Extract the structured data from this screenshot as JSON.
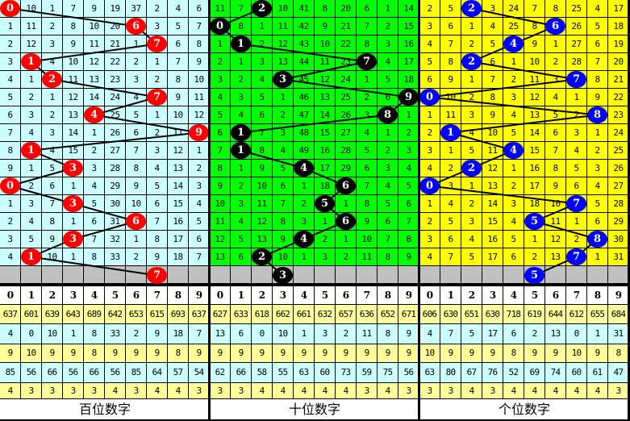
{
  "colors": {
    "grid": "#000000",
    "pending_row": "#c0c0c0",
    "stat_yellow": "#ffff99",
    "stat_cyan": "#ccffff",
    "ball_text": "#ffffff"
  },
  "sections": [
    {
      "label": "百位数字",
      "background": "#ccffff",
      "ball_color": "#ff0000",
      "rows": [
        {
          "cells": [
            "0",
            "10",
            "1",
            "7",
            "9",
            "19",
            "37",
            "2",
            "4",
            "6"
          ],
          "hit": 0
        },
        {
          "cells": [
            "1",
            "11",
            "2",
            "8",
            "10",
            "20",
            "6",
            "3",
            "5",
            "7"
          ],
          "hit": 6
        },
        {
          "cells": [
            "2",
            "12",
            "3",
            "9",
            "11",
            "21",
            "1",
            "7",
            "6",
            "8"
          ],
          "hit": 7
        },
        {
          "cells": [
            "3",
            "1",
            "4",
            "10",
            "12",
            "22",
            "2",
            "1",
            "7",
            "9"
          ],
          "hit": 1
        },
        {
          "cells": [
            "4",
            "1",
            "2",
            "11",
            "13",
            "23",
            "3",
            "2",
            "8",
            "10"
          ],
          "hit": 2
        },
        {
          "cells": [
            "5",
            "2",
            "1",
            "12",
            "14",
            "24",
            "4",
            "7",
            "9",
            "11"
          ],
          "hit": 7
        },
        {
          "cells": [
            "6",
            "3",
            "2",
            "13",
            "4",
            "25",
            "5",
            "1",
            "10",
            "12"
          ],
          "hit": 4
        },
        {
          "cells": [
            "7",
            "4",
            "3",
            "14",
            "1",
            "26",
            "6",
            "2",
            "11",
            "9"
          ],
          "hit": 9
        },
        {
          "cells": [
            "8",
            "1",
            "4",
            "15",
            "2",
            "27",
            "7",
            "3",
            "12",
            "1"
          ],
          "hit": 1
        },
        {
          "cells": [
            "9",
            "1",
            "5",
            "3",
            "3",
            "28",
            "8",
            "4",
            "13",
            "2"
          ],
          "hit": 3
        },
        {
          "cells": [
            "0",
            "2",
            "6",
            "1",
            "4",
            "29",
            "9",
            "5",
            "14",
            "3"
          ],
          "hit": 0
        },
        {
          "cells": [
            "1",
            "3",
            "7",
            "3",
            "5",
            "30",
            "10",
            "6",
            "15",
            "4"
          ],
          "hit": 3
        },
        {
          "cells": [
            "2",
            "4",
            "8",
            "1",
            "6",
            "31",
            "6",
            "7",
            "16",
            "5"
          ],
          "hit": 6
        },
        {
          "cells": [
            "3",
            "5",
            "9",
            "3",
            "7",
            "32",
            "1",
            "8",
            "17",
            "6"
          ],
          "hit": 3
        },
        {
          "cells": [
            "4",
            "1",
            "10",
            "1",
            "8",
            "33",
            "2",
            "9",
            "18",
            "7"
          ],
          "hit": 1
        }
      ],
      "next": {
        "digit": "7",
        "col": 7
      },
      "header": [
        "0",
        "1",
        "2",
        "3",
        "4",
        "5",
        "6",
        "7",
        "8",
        "9"
      ],
      "stats": [
        [
          "637",
          "601",
          "639",
          "643",
          "689",
          "642",
          "653",
          "615",
          "693",
          "637"
        ],
        [
          "4",
          "0",
          "10",
          "1",
          "8",
          "33",
          "2",
          "9",
          "18",
          "7"
        ],
        [
          "9",
          "10",
          "9",
          "9",
          "8",
          "9",
          "9",
          "9",
          "8",
          "9"
        ],
        [
          "85",
          "56",
          "66",
          "56",
          "66",
          "56",
          "85",
          "64",
          "57",
          "54"
        ],
        [
          "4",
          "3",
          "3",
          "3",
          "3",
          "4",
          "3",
          "4",
          "4",
          "3"
        ]
      ]
    },
    {
      "label": "十位数字",
      "background": "#00ff00",
      "ball_color": "#000000",
      "rows": [
        {
          "cells": [
            "11",
            "7",
            "2",
            "10",
            "41",
            "8",
            "20",
            "6",
            "1",
            "14"
          ],
          "hit": 2
        },
        {
          "cells": [
            "0",
            "8",
            "1",
            "11",
            "42",
            "9",
            "21",
            "7",
            "2",
            "15"
          ],
          "hit": 0
        },
        {
          "cells": [
            "1",
            "1",
            "2",
            "12",
            "43",
            "10",
            "22",
            "8",
            "3",
            "16"
          ],
          "hit": 1
        },
        {
          "cells": [
            "2",
            "1",
            "3",
            "13",
            "44",
            "11",
            "23",
            "7",
            "4",
            "17"
          ],
          "hit": 7
        },
        {
          "cells": [
            "3",
            "2",
            "4",
            "3",
            "45",
            "12",
            "24",
            "1",
            "5",
            "18"
          ],
          "hit": 3
        },
        {
          "cells": [
            "4",
            "3",
            "5",
            "1",
            "46",
            "13",
            "25",
            "2",
            "6",
            "9"
          ],
          "hit": 9
        },
        {
          "cells": [
            "5",
            "4",
            "6",
            "2",
            "47",
            "14",
            "26",
            "3",
            "8",
            "1"
          ],
          "hit": 8
        },
        {
          "cells": [
            "6",
            "1",
            "7",
            "3",
            "48",
            "15",
            "27",
            "4",
            "1",
            "2"
          ],
          "hit": 1
        },
        {
          "cells": [
            "7",
            "1",
            "8",
            "4",
            "49",
            "16",
            "28",
            "5",
            "2",
            "3"
          ],
          "hit": 1
        },
        {
          "cells": [
            "8",
            "1",
            "9",
            "5",
            "4",
            "17",
            "29",
            "6",
            "3",
            "4"
          ],
          "hit": 4
        },
        {
          "cells": [
            "9",
            "2",
            "10",
            "6",
            "1",
            "18",
            "6",
            "7",
            "4",
            "5"
          ],
          "hit": 6
        },
        {
          "cells": [
            "10",
            "3",
            "11",
            "7",
            "2",
            "5",
            "1",
            "8",
            "5",
            "6"
          ],
          "hit": 5
        },
        {
          "cells": [
            "11",
            "4",
            "12",
            "8",
            "3",
            "1",
            "6",
            "9",
            "6",
            "7"
          ],
          "hit": 6
        },
        {
          "cells": [
            "12",
            "5",
            "13",
            "9",
            "4",
            "2",
            "1",
            "10",
            "7",
            "8"
          ],
          "hit": 4
        },
        {
          "cells": [
            "13",
            "6",
            "2",
            "10",
            "1",
            "3",
            "2",
            "11",
            "8",
            "9"
          ],
          "hit": 2
        }
      ],
      "next": {
        "digit": "3",
        "col": 3
      },
      "header": [
        "0",
        "1",
        "2",
        "3",
        "4",
        "5",
        "6",
        "7",
        "8",
        "9"
      ],
      "stats": [
        [
          "627",
          "633",
          "618",
          "662",
          "661",
          "632",
          "657",
          "636",
          "652",
          "671"
        ],
        [
          "13",
          "6",
          "0",
          "10",
          "1",
          "3",
          "2",
          "11",
          "8",
          "9"
        ],
        [
          "9",
          "9",
          "9",
          "9",
          "9",
          "9",
          "9",
          "9",
          "9",
          "9"
        ],
        [
          "62",
          "66",
          "58",
          "55",
          "63",
          "60",
          "73",
          "59",
          "75",
          "56"
        ],
        [
          "3",
          "3",
          "4",
          "4",
          "4",
          "4",
          "4",
          "3",
          "4",
          "3"
        ]
      ]
    },
    {
      "label": "个位数字",
      "background": "#ffff00",
      "ball_color": "#0000ff",
      "rows": [
        {
          "cells": [
            "2",
            "5",
            "2",
            "3",
            "24",
            "7",
            "8",
            "25",
            "4",
            "17"
          ],
          "hit": 2
        },
        {
          "cells": [
            "3",
            "6",
            "1",
            "4",
            "25",
            "8",
            "6",
            "26",
            "5",
            "18"
          ],
          "hit": 6
        },
        {
          "cells": [
            "4",
            "7",
            "2",
            "5",
            "4",
            "9",
            "1",
            "27",
            "6",
            "19"
          ],
          "hit": 4
        },
        {
          "cells": [
            "5",
            "8",
            "2",
            "6",
            "1",
            "10",
            "2",
            "28",
            "7",
            "20"
          ],
          "hit": 2
        },
        {
          "cells": [
            "6",
            "9",
            "1",
            "7",
            "2",
            "11",
            "3",
            "7",
            "8",
            "21"
          ],
          "hit": 7
        },
        {
          "cells": [
            "0",
            "10",
            "2",
            "8",
            "3",
            "12",
            "4",
            "1",
            "9",
            "22"
          ],
          "hit": 0
        },
        {
          "cells": [
            "1",
            "11",
            "3",
            "9",
            "4",
            "13",
            "5",
            "2",
            "8",
            "23"
          ],
          "hit": 8
        },
        {
          "cells": [
            "2",
            "1",
            "4",
            "10",
            "5",
            "14",
            "6",
            "3",
            "1",
            "24"
          ],
          "hit": 1
        },
        {
          "cells": [
            "3",
            "1",
            "5",
            "11",
            "4",
            "15",
            "7",
            "4",
            "2",
            "25"
          ],
          "hit": 4
        },
        {
          "cells": [
            "4",
            "2",
            "2",
            "12",
            "1",
            "16",
            "8",
            "5",
            "3",
            "26"
          ],
          "hit": 2
        },
        {
          "cells": [
            "0",
            "3",
            "1",
            "13",
            "2",
            "17",
            "9",
            "6",
            "4",
            "27"
          ],
          "hit": 0
        },
        {
          "cells": [
            "1",
            "4",
            "2",
            "14",
            "3",
            "18",
            "10",
            "7",
            "5",
            "28"
          ],
          "hit": 7
        },
        {
          "cells": [
            "2",
            "5",
            "3",
            "15",
            "4",
            "5",
            "11",
            "1",
            "6",
            "29"
          ],
          "hit": 5
        },
        {
          "cells": [
            "3",
            "6",
            "4",
            "16",
            "5",
            "1",
            "12",
            "2",
            "8",
            "30"
          ],
          "hit": 8
        },
        {
          "cells": [
            "4",
            "7",
            "5",
            "17",
            "6",
            "2",
            "13",
            "7",
            "1",
            "31"
          ],
          "hit": 7
        }
      ],
      "next": {
        "digit": "5",
        "col": 5
      },
      "header": [
        "0",
        "1",
        "2",
        "3",
        "4",
        "5",
        "6",
        "7",
        "8",
        "9"
      ],
      "stats": [
        [
          "606",
          "630",
          "651",
          "630",
          "718",
          "619",
          "644",
          "612",
          "655",
          "684"
        ],
        [
          "4",
          "7",
          "5",
          "17",
          "6",
          "2",
          "13",
          "0",
          "1",
          "31"
        ],
        [
          "10",
          "9",
          "9",
          "9",
          "8",
          "9",
          "9",
          "10",
          "9",
          "8"
        ],
        [
          "63",
          "80",
          "67",
          "76",
          "52",
          "69",
          "74",
          "60",
          "61",
          "47"
        ],
        [
          "3",
          "3",
          "4",
          "3",
          "4",
          "4",
          "4",
          "4",
          "4",
          "3"
        ]
      ]
    }
  ]
}
